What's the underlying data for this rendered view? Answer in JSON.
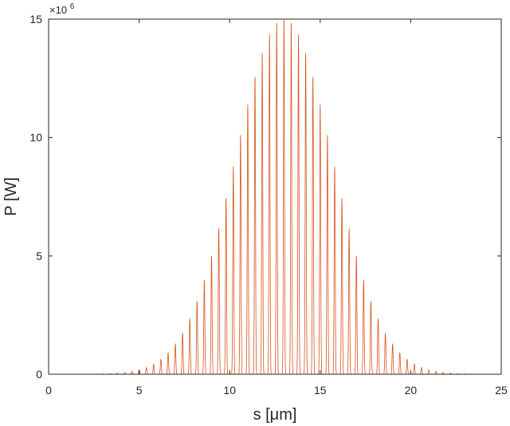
{
  "chart_data": {
    "type": "line",
    "xlabel": "s [μm]",
    "ylabel": "P [W]",
    "xlim": [
      0,
      25
    ],
    "ylim": [
      0,
      15000000
    ],
    "y_exponent_label": "×10",
    "y_exponent_power": "6",
    "x_ticks": [
      {
        "value": 0,
        "label": "0"
      },
      {
        "value": 5,
        "label": "5"
      },
      {
        "value": 10,
        "label": "10"
      },
      {
        "value": 15,
        "label": "15"
      },
      {
        "value": 20,
        "label": "20"
      },
      {
        "value": 25,
        "label": "25"
      }
    ],
    "y_ticks": [
      {
        "value": 0,
        "label": "0"
      },
      {
        "value": 5000000,
        "label": "5"
      },
      {
        "value": 10000000,
        "label": "10"
      },
      {
        "value": 15000000,
        "label": "15"
      }
    ],
    "series": [
      {
        "color": "#d95319",
        "x_range": [
          2.6,
          23.4
        ],
        "envelope": {
          "shape": "gaussian",
          "peak_x": 13.0,
          "peak_y": 15000000,
          "sigma": 2.7
        },
        "oscillation_period": 0.4
      }
    ],
    "grid": false,
    "legend": "none"
  },
  "colors": {
    "series": "#d95319",
    "axes": "#262626",
    "background": "#ffffff"
  }
}
